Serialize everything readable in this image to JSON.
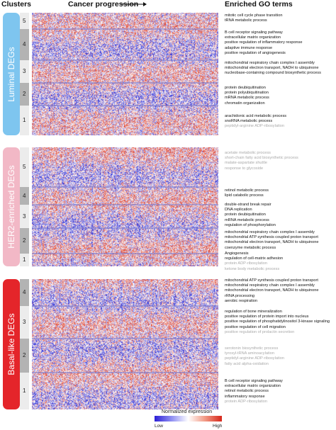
{
  "headers": {
    "clusters": "Clusters",
    "progression": "Cancer progression",
    "go_terms": "Enriched GO terms"
  },
  "groups": [
    {
      "label": "Luminal DEGs",
      "color": "#7ec5ef",
      "clusters": [
        {
          "num": "5",
          "top": 18,
          "h": 23,
          "shade": "#ececec"
        },
        {
          "num": "4",
          "top": 41,
          "h": 44,
          "shade": "#b3b3b3"
        },
        {
          "num": "3",
          "top": 85,
          "h": 32,
          "shade": "#ececec"
        },
        {
          "num": "2",
          "top": 117,
          "h": 32,
          "shade": "#b3b3b3"
        },
        {
          "num": "1",
          "top": 149,
          "h": 42,
          "shade": "#ececec"
        }
      ]
    },
    {
      "label": "HER2-enriched DEGs",
      "color": "#f2b8c6",
      "clusters": [
        {
          "num": "5",
          "top": 208,
          "h": 56,
          "shade": "#ececec"
        },
        {
          "num": "4",
          "top": 264,
          "h": 25,
          "shade": "#b3b3b3"
        },
        {
          "num": "3",
          "top": 289,
          "h": 33,
          "shade": "#ececec"
        },
        {
          "num": "2",
          "top": 322,
          "h": 36,
          "shade": "#b3b3b3"
        },
        {
          "num": "1",
          "top": 358,
          "h": 18,
          "shade": "#ececec"
        }
      ]
    },
    {
      "label": "Basal-like DEGs",
      "color": "#e4252a",
      "clusters": [
        {
          "num": "4",
          "top": 394,
          "h": 38,
          "shade": "#b3b3b3"
        },
        {
          "num": "3",
          "top": 432,
          "h": 46,
          "shade": "#ececec"
        },
        {
          "num": "2",
          "top": 478,
          "h": 48,
          "shade": "#b3b3b3"
        },
        {
          "num": "1",
          "top": 526,
          "h": 52,
          "shade": "#ececec"
        }
      ]
    }
  ],
  "go_blocks": [
    {
      "top": 19,
      "terms": [
        {
          "text": "mitotic cell cycle phase transition",
          "dim": false
        },
        {
          "text": "tRNA metabolic process",
          "dim": false
        }
      ]
    },
    {
      "top": 43,
      "terms": [
        {
          "text": "B cell receptor signaling pathway",
          "dim": false
        },
        {
          "text": "extracellular matrix organization",
          "dim": false
        },
        {
          "text": "positive regulation of inflammatory response",
          "dim": false
        },
        {
          "text": "adaptive immune response",
          "dim": false
        },
        {
          "text": "positive regulation of angiogenesis",
          "dim": false
        }
      ]
    },
    {
      "top": 86,
      "terms": [
        {
          "text": "mitochondrial respiratory chain complex I assembly",
          "dim": false
        },
        {
          "text": "mitochondrial electron transport, NADH to ubiquinone",
          "dim": false
        },
        {
          "text": "nucleobase-containing compound biosynthetic process",
          "dim": false
        }
      ]
    },
    {
      "top": 121,
      "terms": [
        {
          "text": "protein deubiquitination",
          "dim": false
        },
        {
          "text": "protein polyubiquitination",
          "dim": false
        },
        {
          "text": "mRNA metabolic process",
          "dim": false
        },
        {
          "text": "chromatin organization",
          "dim": false
        }
      ]
    },
    {
      "top": 161,
      "terms": [
        {
          "text": "arachidonic acid metabolic process",
          "dim": false
        },
        {
          "text": "snoRNA metabolic process",
          "dim": false
        },
        {
          "text": "peptidyl-arginine ADP-ribosylation",
          "dim": true
        }
      ]
    },
    {
      "top": 213,
      "terms": [
        {
          "text": "acetate metabolic process",
          "dim": true
        },
        {
          "text": "short-chain fatty acid biosynthetic process",
          "dim": true
        },
        {
          "text": "malate-aspartate shuttle",
          "dim": true
        },
        {
          "text": "response to glycoside",
          "dim": true
        }
      ]
    },
    {
      "top": 266,
      "terms": [
        {
          "text": "retinol metabolic process",
          "dim": false
        },
        {
          "text": "lipid catabolic process",
          "dim": false
        }
      ]
    },
    {
      "top": 286,
      "terms": [
        {
          "text": "double-strand break repair",
          "dim": false
        },
        {
          "text": "DNA replication",
          "dim": false
        },
        {
          "text": "protein deubiquitination",
          "dim": false
        },
        {
          "text": "mRNA metabolic process",
          "dim": false
        },
        {
          "text": "regulation of phosphorylation",
          "dim": false
        }
      ]
    },
    {
      "top": 325,
      "terms": [
        {
          "text": "mitochondrial respiratory chain complex I assembly",
          "dim": false
        },
        {
          "text": "mitochondrial ATP synthesis coupled proton transport",
          "dim": false
        },
        {
          "text": "mitochondrial electron transport, NADH to ubiquinone",
          "dim": false
        },
        {
          "text": "coenzyme metabolic process",
          "dim": false
        }
      ]
    },
    {
      "top": 355,
      "terms": [
        {
          "text": "Angiogenesis",
          "dim": false
        },
        {
          "text": "regulation of cell-matrix adhesion",
          "dim": false
        },
        {
          "text": "protein ADP-ribosylation",
          "dim": true
        },
        {
          "text": "ketone body metabolic process",
          "dim": true
        }
      ]
    },
    {
      "top": 393,
      "terms": [
        {
          "text": "mitochondrial ATP synthesis coupled proton transport",
          "dim": false
        },
        {
          "text": "mitochondrial respiratory chain complex I assembly",
          "dim": false
        },
        {
          "text": "mitochondrial electron transport, NADH to ubiquinone",
          "dim": false
        },
        {
          "text": "rRNA processing",
          "dim": false
        },
        {
          "text": "aerobic respiration",
          "dim": false
        }
      ]
    },
    {
      "top": 437,
      "terms": [
        {
          "text": "regulation of bone mineralization",
          "dim": false
        },
        {
          "text": "positive regulation of protein import into nucleus",
          "dim": false
        },
        {
          "text": "positive regulation of phosphatidylinositol 3-kinase signaling",
          "dim": false
        },
        {
          "text": "positive regulation of cell migration",
          "dim": false
        },
        {
          "text": "positive regulation of prolactin secretion",
          "dim": true
        }
      ]
    },
    {
      "top": 489,
      "terms": [
        {
          "text": "serotonin biosynthetic process",
          "dim": true
        },
        {
          "text": "tyrosyl-tRNA aminoacylation",
          "dim": true
        },
        {
          "text": "peptidyl-arginine ADP-ribosylation",
          "dim": true
        },
        {
          "text": "fatty acid alpha-oxidation",
          "dim": true
        }
      ]
    },
    {
      "top": 535,
      "terms": [
        {
          "text": "B cell receptor signaling pathway",
          "dim": false
        },
        {
          "text": "extracellular matrix organization",
          "dim": false
        },
        {
          "text": "retinol metabolic process",
          "dim": false
        },
        {
          "text": "inflammatory response",
          "dim": false
        },
        {
          "text": "protein ADP-ribosylation",
          "dim": true
        }
      ]
    }
  ],
  "legend": {
    "title": "Normalized expression",
    "low": "Low",
    "high": "High",
    "low_color": "#2c1fd6",
    "high_color": "#d6261a"
  }
}
